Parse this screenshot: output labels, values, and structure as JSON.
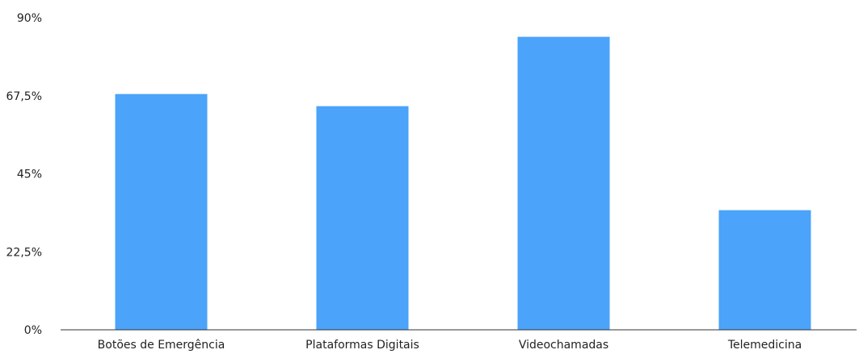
{
  "chart_data": {
    "type": "bar",
    "title": "",
    "xlabel": "",
    "ylabel": "",
    "categories": [
      "Botões de Emergência",
      "Plataformas Digitais",
      "Videochamadas",
      "Telemedicina"
    ],
    "values": [
      68,
      64.5,
      84.5,
      34.5
    ],
    "ylim": [
      0,
      90
    ],
    "yticks": [
      0,
      22.5,
      45,
      67.5,
      90
    ],
    "ytick_labels": [
      "0%",
      "22,5%",
      "45%",
      "67,5%",
      "90%"
    ],
    "grid": false,
    "legend": "none",
    "colors": {
      "bar": "#4ba3fa",
      "axis": "#333333",
      "text": "#222222"
    }
  }
}
